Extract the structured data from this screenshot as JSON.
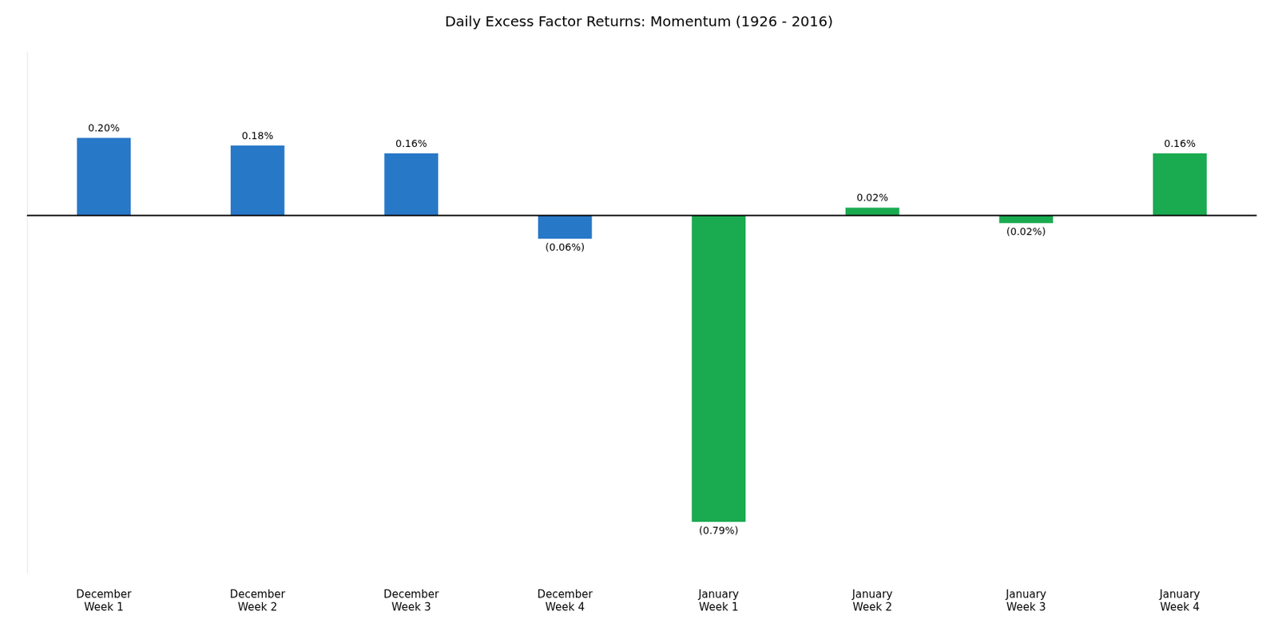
{
  "chart_data": {
    "type": "bar",
    "title": "Daily Excess Factor Returns: Momentum (1926 - 2016)",
    "categories": [
      "December\nWeek 1",
      "December\nWeek 2",
      "December\nWeek 3",
      "December\nWeek 4",
      "January\nWeek 1",
      "January\nWeek 2",
      "January\nWeek 3",
      "January\nWeek 4"
    ],
    "values": [
      0.2,
      0.18,
      0.16,
      -0.06,
      -0.79,
      0.02,
      -0.02,
      0.16
    ],
    "value_labels": [
      "0.20%",
      "0.18%",
      "0.16%",
      "(0.06%)",
      "(0.79%)",
      "0.02%",
      "(0.02%)",
      "0.16%"
    ],
    "colors": [
      "#2878c8",
      "#2878c8",
      "#2878c8",
      "#2878c8",
      "#1aaa50",
      "#1aaa50",
      "#1aaa50",
      "#1aaa50"
    ],
    "data_labels": true,
    "ylim": [
      -0.92,
      0.42
    ],
    "tick_labels": "x",
    "grid": false
  }
}
